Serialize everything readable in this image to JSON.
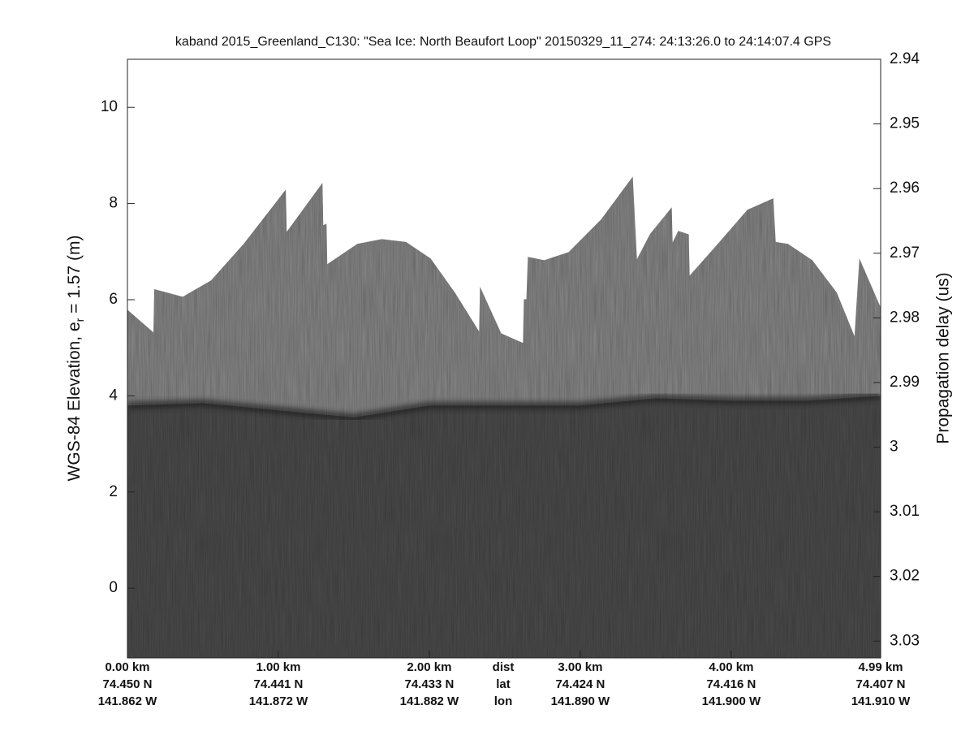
{
  "chart_data": {
    "type": "echogram",
    "title": "kaband 2015_Greenland_C130: \"Sea Ice: North Beaufort Loop\"  20150329_11_274: 24:13:26.0 to 24:14:07.4 GPS",
    "ylabel": {
      "main": "WGS-84 Elevation, e",
      "sub": "r",
      "rest": " = 1.57 (m)"
    },
    "y2label": "Propagation delay (us)",
    "xlim": [
      0,
      4.99
    ],
    "ylim": [
      -1.45,
      11.0
    ],
    "y2lim": [
      3.0326,
      2.94
    ],
    "yticks": [
      0,
      2,
      4,
      6,
      8,
      10
    ],
    "y2ticks": [
      2.94,
      2.95,
      2.96,
      2.97,
      2.98,
      2.99,
      3,
      3.01,
      3.02,
      3.03
    ],
    "xticks": [
      {
        "value": 0,
        "label": "0.00 km"
      },
      {
        "value": 1,
        "label": "1.00 km"
      },
      {
        "value": 2,
        "label": "2.00 km"
      },
      {
        "value": 3,
        "label": "3.00 km"
      },
      {
        "value": 4,
        "label": "4.00 km"
      },
      {
        "value": 4.99,
        "label": "4.99 km"
      }
    ],
    "lat_labels": [
      "74.450 N",
      "74.441 N",
      "74.433 N",
      "74.424 N",
      "74.416 N",
      "74.407 N"
    ],
    "lon_labels": [
      "141.862 W",
      "141.872 W",
      "141.882 W",
      "141.890 W",
      "141.900 W",
      "141.910 W"
    ],
    "row_labels": [
      "dist",
      "lat",
      "lon"
    ],
    "profiles": [
      {
        "color": "#8a8a8a",
        "x": [
          0,
          0.172,
          0.178,
          0.366,
          0.554,
          0.77,
          1.049,
          1.055,
          1.292,
          1.297,
          1.319,
          1.324,
          1.523,
          1.685,
          1.846,
          2.008,
          2.169,
          2.33,
          2.336,
          2.476,
          2.621,
          2.626,
          2.643,
          2.653,
          2.761,
          2.923,
          3.138,
          3.348,
          3.375,
          3.461,
          3.606,
          3.612,
          3.649,
          3.719,
          3.724,
          3.891,
          4.107,
          4.279,
          4.295,
          4.376,
          4.537,
          4.699,
          4.817,
          4.849,
          4.99
        ],
        "values": [
          5.79,
          5.32,
          6.22,
          6.06,
          6.4,
          7.16,
          8.29,
          7.41,
          8.43,
          7.55,
          7.58,
          6.74,
          7.16,
          7.26,
          7.2,
          6.86,
          6.15,
          5.34,
          6.27,
          5.3,
          5.1,
          6.01,
          6.01,
          6.89,
          6.82,
          6.99,
          7.67,
          8.56,
          6.84,
          7.36,
          7.92,
          7.19,
          7.43,
          7.36,
          6.5,
          7.09,
          7.87,
          8.11,
          7.2,
          7.16,
          6.82,
          6.15,
          5.24,
          6.86,
          5.84
        ]
      },
      {
        "color": "#4d4d4d",
        "x": [
          0,
          0.5,
          1.0,
          1.5,
          2.0,
          2.5,
          3.0,
          3.5,
          4.0,
          4.5,
          4.99
        ],
        "values": [
          3.8,
          3.85,
          3.7,
          3.55,
          3.8,
          3.8,
          3.8,
          3.95,
          3.9,
          3.9,
          4.0
        ]
      }
    ]
  }
}
